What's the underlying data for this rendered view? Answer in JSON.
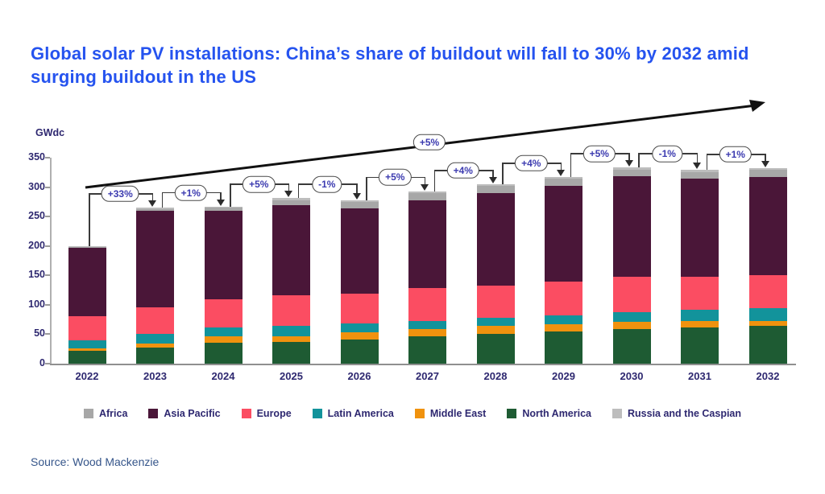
{
  "title": "Global solar PV installations: China’s share of buildout will fall to 30% by 2032 amid surging buildout in the US",
  "source": "Source: Wood Mackenzie",
  "colors": {
    "title_blue": "#2553ef",
    "text_navy": "#2e2870",
    "source_blue": "#35558a",
    "connector_line": "#3a3a3a",
    "axis_gray": "#9b9b9b",
    "oval_text": "#3c3bb0"
  },
  "chart_data": {
    "type": "bar",
    "subtype": "stacked",
    "unit_label": "GWdc",
    "categories": [
      "2022",
      "2023",
      "2024",
      "2025",
      "2026",
      "2027",
      "2028",
      "2029",
      "2030",
      "2031",
      "2032"
    ],
    "series": [
      {
        "name": "North America",
        "color": "#1e5b33",
        "values": [
          22,
          27,
          35,
          37,
          41,
          46,
          50,
          55,
          59,
          61,
          64
        ]
      },
      {
        "name": "Middle East",
        "color": "#f0920e",
        "values": [
          4,
          7,
          11,
          10,
          13,
          13,
          14,
          12,
          12,
          12,
          8
        ]
      },
      {
        "name": "Latin America",
        "color": "#12939b",
        "values": [
          13,
          16,
          15,
          17,
          14,
          14,
          14,
          15,
          16,
          18,
          22
        ]
      },
      {
        "name": "Europe",
        "color": "#fb4d62",
        "values": [
          41,
          46,
          49,
          52,
          51,
          55,
          54,
          58,
          61,
          57,
          56
        ]
      },
      {
        "name": "Asia Pacific",
        "color": "#4a1638",
        "values": [
          117,
          164,
          150,
          153,
          145,
          150,
          158,
          162,
          170,
          166,
          167
        ]
      },
      {
        "name": "Africa",
        "color": "#a7a7a7",
        "values": [
          2,
          3,
          5,
          9,
          11,
          12,
          12,
          12,
          12,
          12,
          12
        ]
      },
      {
        "name": "Russia and the Caspian",
        "color": "#bdbdbd",
        "values": [
          1,
          2,
          2,
          3,
          3,
          3,
          3,
          3,
          3,
          3,
          3
        ]
      }
    ],
    "totals": [
      200,
      265,
      267,
      281,
      278,
      293,
      305,
      317,
      333,
      329,
      332
    ],
    "growth_labels": [
      "+33%",
      "+1%",
      "+5%",
      "-1%",
      "+5%",
      "+4%",
      "+4%",
      "+5%",
      "-1%",
      "+1%"
    ],
    "trend_arrow_label": "+5%",
    "ylabel": "GWdc",
    "ylim": [
      0,
      350
    ],
    "yticks": [
      0,
      50,
      100,
      150,
      200,
      250,
      300,
      350
    ],
    "grid": false,
    "legend_position": "bottom",
    "legend": [
      "Africa",
      "Asia Pacific",
      "Europe",
      "Latin America",
      "Middle East",
      "North America",
      "Russia and the Caspian"
    ]
  }
}
